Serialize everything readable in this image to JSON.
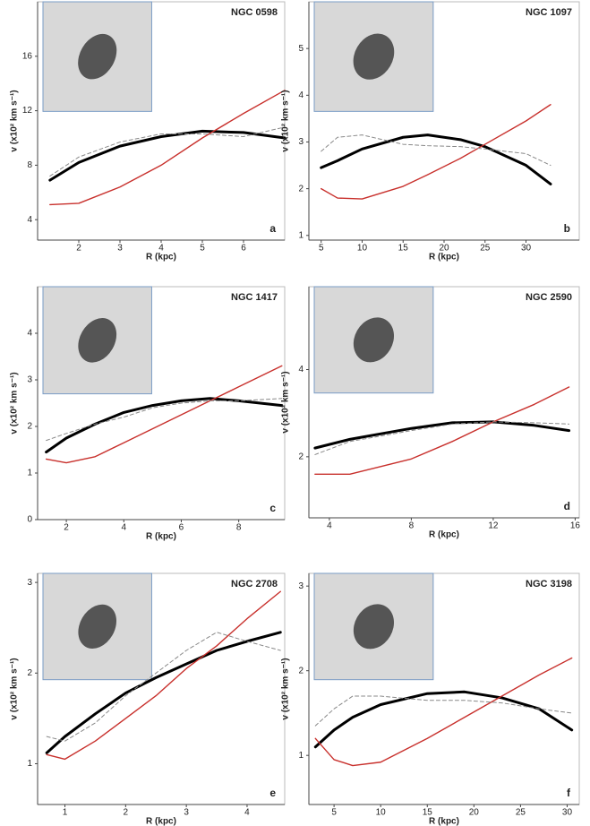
{
  "chart_data": [
    {
      "type": "line",
      "title": "NGC 0598",
      "panel": "a",
      "x_label": "R (kpc)",
      "y_label": "v (x10² km s⁻¹)",
      "x": [
        1.3,
        2,
        3,
        4,
        5,
        6,
        7
      ],
      "xlim": [
        1,
        7
      ],
      "xticks": [
        2,
        3,
        4,
        5,
        6
      ],
      "ylim": [
        2.5,
        20
      ],
      "yticks": [
        4,
        8,
        12,
        16
      ],
      "series": [
        {
          "color": "#000000",
          "line_style": "bold",
          "values": [
            6.9,
            8.2,
            9.4,
            10.1,
            10.5,
            10.4,
            10.0
          ]
        },
        {
          "color": "#c8302c",
          "line_style": "solid",
          "values": [
            5.1,
            5.2,
            6.4,
            8.0,
            10.0,
            11.8,
            13.5
          ]
        },
        {
          "color": "#888888",
          "line_style": "dashed",
          "values": [
            7.2,
            8.6,
            9.7,
            10.3,
            10.3,
            10.1,
            10.8
          ]
        }
      ]
    },
    {
      "type": "line",
      "title": "NGC 1097",
      "panel": "b",
      "x_label": "R (kpc)",
      "y_label": "v (x10² km s⁻¹)",
      "x": [
        5,
        7,
        10,
        15,
        18,
        22,
        25,
        30,
        33
      ],
      "xlim": [
        3.5,
        36.5
      ],
      "xticks": [
        5,
        10,
        15,
        20,
        25,
        30
      ],
      "ylim": [
        0.9,
        6
      ],
      "yticks": [
        1,
        2,
        3,
        4,
        5
      ],
      "series": [
        {
          "color": "#000000",
          "line_style": "bold",
          "values": [
            2.45,
            2.6,
            2.85,
            3.1,
            3.15,
            3.05,
            2.9,
            2.5,
            2.1
          ]
        },
        {
          "color": "#c8302c",
          "line_style": "solid",
          "values": [
            2.0,
            1.8,
            1.78,
            2.05,
            2.3,
            2.65,
            2.95,
            3.45,
            3.8
          ]
        },
        {
          "color": "#888888",
          "line_style": "dashed",
          "values": [
            2.8,
            3.1,
            3.15,
            2.95,
            2.92,
            2.9,
            2.85,
            2.75,
            2.5
          ]
        }
      ]
    },
    {
      "type": "line",
      "title": "NGC 1417",
      "panel": "c",
      "x_label": "R (kpc)",
      "y_label": "v (x10² km s⁻¹)",
      "x": [
        1.3,
        2,
        3,
        4,
        5,
        6,
        7,
        8,
        9.5
      ],
      "xlim": [
        1,
        9.6
      ],
      "xticks": [
        2,
        4,
        6,
        8
      ],
      "ylim": [
        0,
        5
      ],
      "yticks": [
        0,
        1,
        2,
        3,
        4
      ],
      "series": [
        {
          "color": "#000000",
          "line_style": "bold",
          "values": [
            1.45,
            1.75,
            2.05,
            2.3,
            2.45,
            2.55,
            2.6,
            2.55,
            2.45
          ]
        },
        {
          "color": "#c8302c",
          "line_style": "solid",
          "values": [
            1.3,
            1.22,
            1.35,
            1.65,
            1.95,
            2.25,
            2.55,
            2.85,
            3.3
          ]
        },
        {
          "color": "#888888",
          "line_style": "dashed",
          "values": [
            1.7,
            1.85,
            2.05,
            2.2,
            2.4,
            2.5,
            2.55,
            2.55,
            2.6
          ]
        }
      ]
    },
    {
      "type": "line",
      "title": "NGC 2590",
      "panel": "d",
      "x_label": "R (kpc)",
      "y_label": "v (x10² km s⁻¹)",
      "x": [
        3.3,
        5,
        8,
        10,
        12,
        14,
        15.7
      ],
      "xlim": [
        3,
        16.2
      ],
      "xticks": [
        4,
        8,
        12,
        16
      ],
      "ylim": [
        0.6,
        5.9
      ],
      "yticks": [
        2,
        4
      ],
      "series": [
        {
          "color": "#000000",
          "line_style": "bold",
          "values": [
            2.2,
            2.4,
            2.65,
            2.78,
            2.8,
            2.72,
            2.6
          ]
        },
        {
          "color": "#c8302c",
          "line_style": "solid",
          "values": [
            1.6,
            1.6,
            1.95,
            2.35,
            2.8,
            3.2,
            3.6
          ]
        },
        {
          "color": "#888888",
          "line_style": "dashed",
          "values": [
            2.05,
            2.35,
            2.6,
            2.75,
            2.8,
            2.78,
            2.75
          ]
        }
      ]
    },
    {
      "type": "line",
      "title": "NGC 2708",
      "panel": "e",
      "x_label": "R (kpc)",
      "y_label": "v (x10² km s⁻¹)",
      "x": [
        0.7,
        1,
        1.5,
        2,
        2.5,
        3,
        3.5,
        4,
        4.55
      ],
      "xlim": [
        0.55,
        4.62
      ],
      "xticks": [
        1,
        2,
        3,
        4
      ],
      "ylim": [
        0.55,
        3.1
      ],
      "yticks": [
        1,
        2,
        3
      ],
      "series": [
        {
          "color": "#000000",
          "line_style": "bold",
          "values": [
            1.12,
            1.3,
            1.55,
            1.78,
            1.95,
            2.1,
            2.25,
            2.35,
            2.45
          ]
        },
        {
          "color": "#c8302c",
          "line_style": "solid",
          "values": [
            1.1,
            1.05,
            1.25,
            1.5,
            1.75,
            2.05,
            2.3,
            2.6,
            2.9
          ]
        },
        {
          "color": "#888888",
          "line_style": "dashed",
          "values": [
            1.3,
            1.25,
            1.45,
            1.75,
            2.0,
            2.25,
            2.45,
            2.35,
            2.25
          ]
        }
      ]
    },
    {
      "type": "line",
      "title": "NGC 3198",
      "panel": "f",
      "x_label": "R (kpc)",
      "y_label": "v (x10² km s⁻¹)",
      "x": [
        3,
        5,
        7,
        10,
        15,
        19,
        23,
        27,
        30.5
      ],
      "xlim": [
        2.3,
        31.3
      ],
      "xticks": [
        5,
        10,
        15,
        20,
        25,
        30
      ],
      "ylim": [
        0.42,
        3.15
      ],
      "yticks": [
        1,
        2,
        3
      ],
      "series": [
        {
          "color": "#000000",
          "line_style": "bold",
          "values": [
            1.1,
            1.3,
            1.45,
            1.6,
            1.73,
            1.75,
            1.68,
            1.55,
            1.3
          ]
        },
        {
          "color": "#c8302c",
          "line_style": "solid",
          "values": [
            1.2,
            0.95,
            0.88,
            0.92,
            1.2,
            1.45,
            1.7,
            1.95,
            2.15
          ]
        },
        {
          "color": "#888888",
          "line_style": "dashed",
          "values": [
            1.35,
            1.55,
            1.7,
            1.7,
            1.65,
            1.65,
            1.62,
            1.55,
            1.5
          ]
        }
      ]
    }
  ]
}
